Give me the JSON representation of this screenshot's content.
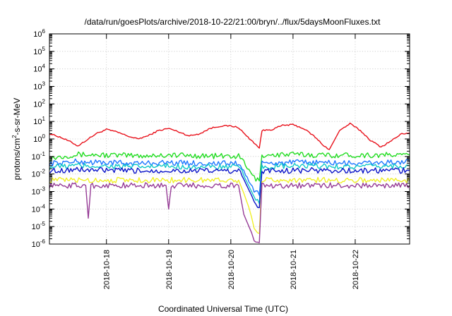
{
  "chart_data": {
    "type": "line",
    "title": "/data/run/goesPlots/archive/2018-10-22/21:00/bryn/../flux/5daysMoonFluxes.txt",
    "xlabel": "Coordinated Universal Time (UTC)",
    "ylabel": "protons/cm²-s-sr-MeV",
    "ylabel_base": "protons/cm",
    "ylabel_sup": "2",
    "ylabel_rest": "-s-sr-MeV",
    "x_range": [
      "2018-10-17T02:00",
      "2018-10-22T21:00"
    ],
    "y_scale": "log",
    "ylim": [
      1e-06,
      1000000.0
    ],
    "y_ticks": [
      {
        "exp": "-6",
        "value": 1e-06
      },
      {
        "exp": "-5",
        "value": 1e-05
      },
      {
        "exp": "-4",
        "value": 0.0001
      },
      {
        "exp": "-3",
        "value": 0.001
      },
      {
        "exp": "-2",
        "value": 0.01
      },
      {
        "exp": "-1",
        "value": 0.1
      },
      {
        "exp": "0",
        "value": 1
      },
      {
        "exp": "1",
        "value": 10
      },
      {
        "exp": "2",
        "value": 100
      },
      {
        "exp": "3",
        "value": 1000.0
      },
      {
        "exp": "4",
        "value": 10000.0
      },
      {
        "exp": "5",
        "value": 100000.0
      },
      {
        "exp": "6",
        "value": 1000000.0
      }
    ],
    "y_tick_base": "10",
    "x_ticks": [
      {
        "label": "2018-10-18",
        "date": "2018-10-18T00:00"
      },
      {
        "label": "2018-10-19",
        "date": "2018-10-19T00:00"
      },
      {
        "label": "2018-10-20",
        "date": "2018-10-20T00:00"
      },
      {
        "label": "2018-10-21",
        "date": "2018-10-21T00:00"
      },
      {
        "label": "2018-10-22",
        "date": "2018-10-22T00:00"
      }
    ],
    "grid": true,
    "legend": "none",
    "series": [
      {
        "color": "#e8101a",
        "values": [
          [
            "2018-10-17T02:00",
            2.0
          ],
          [
            "2018-10-17T06:00",
            1.3
          ],
          [
            "2018-10-17T10:00",
            0.7
          ],
          [
            "2018-10-17T13:00",
            0.4
          ],
          [
            "2018-10-17T16:00",
            0.8
          ],
          [
            "2018-10-17T20:00",
            2.0
          ],
          [
            "2018-10-18T00:00",
            3.5
          ],
          [
            "2018-10-18T04:00",
            2.5
          ],
          [
            "2018-10-18T08:00",
            1.5
          ],
          [
            "2018-10-18T12:00",
            1.0
          ],
          [
            "2018-10-18T16:00",
            1.5
          ],
          [
            "2018-10-18T20:00",
            3.0
          ],
          [
            "2018-10-19T00:00",
            4.0
          ],
          [
            "2018-10-19T04:00",
            2.5
          ],
          [
            "2018-10-19T08:00",
            1.5
          ],
          [
            "2018-10-19T12:00",
            2.0
          ],
          [
            "2018-10-19T16:00",
            4.0
          ],
          [
            "2018-10-19T20:00",
            5.5
          ],
          [
            "2018-10-20T00:00",
            5.5
          ],
          [
            "2018-10-20T03:00",
            4.5
          ],
          [
            "2018-10-20T06:00",
            1.5
          ],
          [
            "2018-10-20T09:00",
            0.6
          ],
          [
            "2018-10-20T11:00",
            0.3
          ],
          [
            "2018-10-20T12:00",
            3.0
          ],
          [
            "2018-10-20T16:00",
            3.5
          ],
          [
            "2018-10-20T20:00",
            6.0
          ],
          [
            "2018-10-21T00:00",
            6.5
          ],
          [
            "2018-10-21T04:00",
            4.0
          ],
          [
            "2018-10-21T08:00",
            1.5
          ],
          [
            "2018-10-21T12:00",
            0.4
          ],
          [
            "2018-10-21T14:00",
            0.25
          ],
          [
            "2018-10-21T18:00",
            3.0
          ],
          [
            "2018-10-21T22:00",
            7.5
          ],
          [
            "2018-10-22T02:00",
            3.0
          ],
          [
            "2018-10-22T06:00",
            0.8
          ],
          [
            "2018-10-22T10:00",
            0.35
          ],
          [
            "2018-10-22T14:00",
            0.8
          ],
          [
            "2018-10-22T18:00",
            2.0
          ],
          [
            "2018-10-22T21:00",
            2.2
          ]
        ]
      },
      {
        "color": "#22dd22",
        "values": [
          [
            "2018-10-17T02:00",
            0.08
          ],
          [
            "2018-10-17T12:00",
            0.13
          ],
          [
            "2018-10-18T00:00",
            0.12
          ],
          [
            "2018-10-18T12:00",
            0.11
          ],
          [
            "2018-10-19T00:00",
            0.12
          ],
          [
            "2018-10-19T12:00",
            0.11
          ],
          [
            "2018-10-20T03:00",
            0.1
          ],
          [
            "2018-10-20T05:00",
            0.05
          ],
          [
            "2018-10-20T07:00",
            0.015
          ],
          [
            "2018-10-20T09:00",
            0.006
          ],
          [
            "2018-10-20T11:00",
            0.004
          ],
          [
            "2018-10-20T12:00",
            0.12
          ],
          [
            "2018-10-21T00:00",
            0.13
          ],
          [
            "2018-10-21T12:00",
            0.12
          ],
          [
            "2018-10-22T00:00",
            0.12
          ],
          [
            "2018-10-22T12:00",
            0.12
          ],
          [
            "2018-10-22T21:00",
            0.12
          ]
        ]
      },
      {
        "color": "#1e78ff",
        "values": [
          [
            "2018-10-17T02:00",
            0.04
          ],
          [
            "2018-10-17T12:00",
            0.05
          ],
          [
            "2018-10-18T00:00",
            0.045
          ],
          [
            "2018-10-18T12:00",
            0.04
          ],
          [
            "2018-10-19T00:00",
            0.045
          ],
          [
            "2018-10-19T12:00",
            0.04
          ],
          [
            "2018-10-20T03:00",
            0.04
          ],
          [
            "2018-10-20T05:00",
            0.015
          ],
          [
            "2018-10-20T07:00",
            0.004
          ],
          [
            "2018-10-20T09:00",
            0.0012
          ],
          [
            "2018-10-20T11:00",
            0.0006
          ],
          [
            "2018-10-20T12:00",
            0.04
          ],
          [
            "2018-10-21T00:00",
            0.045
          ],
          [
            "2018-10-21T12:00",
            0.045
          ],
          [
            "2018-10-22T00:00",
            0.04
          ],
          [
            "2018-10-22T12:00",
            0.045
          ],
          [
            "2018-10-22T21:00",
            0.05
          ]
        ]
      },
      {
        "color": "#10c8c8",
        "values": [
          [
            "2018-10-17T02:00",
            0.025
          ],
          [
            "2018-10-17T12:00",
            0.03
          ],
          [
            "2018-10-18T00:00",
            0.028
          ],
          [
            "2018-10-18T12:00",
            0.025
          ],
          [
            "2018-10-19T00:00",
            0.028
          ],
          [
            "2018-10-19T12:00",
            0.025
          ],
          [
            "2018-10-20T03:00",
            0.025
          ],
          [
            "2018-10-20T05:00",
            0.008
          ],
          [
            "2018-10-20T07:00",
            0.002
          ],
          [
            "2018-10-20T09:00",
            0.0005
          ],
          [
            "2018-10-20T11:00",
            0.0002
          ],
          [
            "2018-10-20T12:00",
            0.025
          ],
          [
            "2018-10-21T00:00",
            0.028
          ],
          [
            "2018-10-21T12:00",
            0.028
          ],
          [
            "2018-10-22T00:00",
            0.025
          ],
          [
            "2018-10-22T12:00",
            0.028
          ],
          [
            "2018-10-22T21:00",
            0.03
          ]
        ]
      },
      {
        "color": "#0a14c8",
        "values": [
          [
            "2018-10-17T02:00",
            0.015
          ],
          [
            "2018-10-17T12:00",
            0.018
          ],
          [
            "2018-10-18T00:00",
            0.016
          ],
          [
            "2018-10-18T12:00",
            0.015
          ],
          [
            "2018-10-19T00:00",
            0.016
          ],
          [
            "2018-10-19T12:00",
            0.015
          ],
          [
            "2018-10-20T03:00",
            0.015
          ],
          [
            "2018-10-20T05:00",
            0.005
          ],
          [
            "2018-10-20T07:00",
            0.0012
          ],
          [
            "2018-10-20T09:00",
            0.0003
          ],
          [
            "2018-10-20T11:00",
            0.00012
          ],
          [
            "2018-10-20T12:00",
            0.015
          ],
          [
            "2018-10-21T00:00",
            0.016
          ],
          [
            "2018-10-21T12:00",
            0.016
          ],
          [
            "2018-10-22T00:00",
            0.015
          ],
          [
            "2018-10-22T12:00",
            0.016
          ],
          [
            "2018-10-22T21:00",
            0.016
          ]
        ]
      },
      {
        "color": "#f0f028",
        "values": [
          [
            "2018-10-17T02:00",
            0.0045
          ],
          [
            "2018-10-18T00:00",
            0.0045
          ],
          [
            "2018-10-19T00:00",
            0.0045
          ],
          [
            "2018-10-20T03:00",
            0.0045
          ],
          [
            "2018-10-20T05:00",
            0.0008
          ],
          [
            "2018-10-20T07:00",
            0.00012
          ],
          [
            "2018-10-20T09:00",
            1e-05
          ],
          [
            "2018-10-20T11:00",
            4e-06
          ],
          [
            "2018-10-20T12:00",
            0.0045
          ],
          [
            "2018-10-21T00:00",
            0.0045
          ],
          [
            "2018-10-22T00:00",
            0.0045
          ],
          [
            "2018-10-22T21:00",
            0.0045
          ]
        ]
      },
      {
        "color": "#963c96",
        "values": [
          [
            "2018-10-17T02:00",
            0.0022
          ],
          [
            "2018-10-17T12:00",
            0.0022
          ],
          [
            "2018-10-17T16:00",
            0.0022
          ],
          [
            "2018-10-17T17:00",
            3e-05
          ],
          [
            "2018-10-17T18:00",
            0.0022
          ],
          [
            "2018-10-18T12:00",
            0.0022
          ],
          [
            "2018-10-18T23:00",
            0.0022
          ],
          [
            "2018-10-19T00:00",
            0.0001
          ],
          [
            "2018-10-19T01:00",
            0.0022
          ],
          [
            "2018-10-20T03:00",
            0.0022
          ],
          [
            "2018-10-20T05:00",
            5e-05
          ],
          [
            "2018-10-20T07:00",
            1e-05
          ],
          [
            "2018-10-20T09:00",
            2e-06
          ],
          [
            "2018-10-20T11:00",
            1.2e-06
          ],
          [
            "2018-10-20T12:00",
            0.0022
          ],
          [
            "2018-10-21T00:00",
            0.0022
          ],
          [
            "2018-10-22T00:00",
            0.0022
          ],
          [
            "2018-10-22T21:00",
            0.0022
          ]
        ]
      }
    ]
  }
}
